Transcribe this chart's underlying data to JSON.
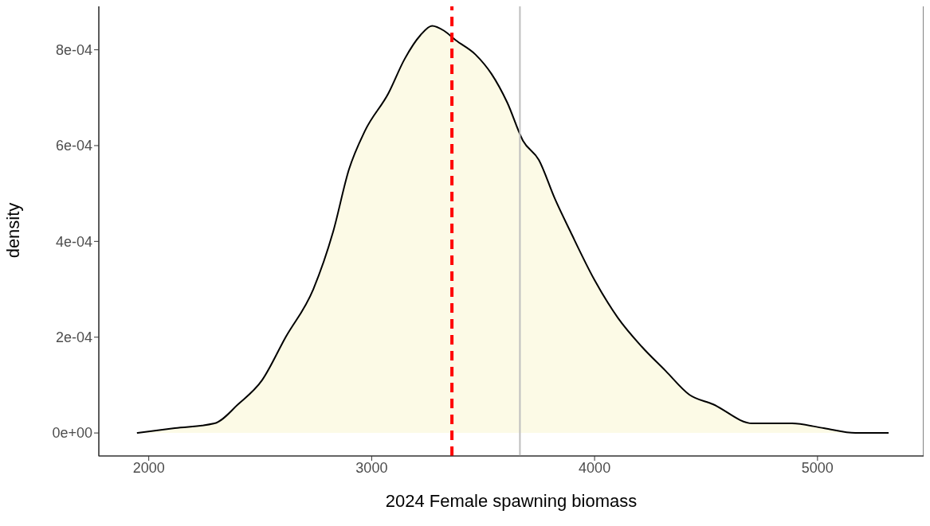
{
  "chart_data": {
    "type": "area",
    "xlabel": "2024 Female spawning biomass",
    "ylabel": "density",
    "x": [
      1947,
      2117,
      2295,
      2401,
      2508,
      2614,
      2738,
      2827,
      2898,
      2969,
      3076,
      3147,
      3218,
      3271,
      3324,
      3377,
      3466,
      3537,
      3608,
      3679,
      3750,
      3821,
      3892,
      3999,
      4105,
      4212,
      4318,
      4425,
      4531,
      4709,
      4886,
      5028,
      5170,
      5319
    ],
    "series": [
      {
        "color": "#000000",
        "values": [
          0,
          1e-05,
          2e-05,
          6e-05,
          0.00011,
          0.0002,
          0.0003,
          0.00042,
          0.00055,
          0.00063,
          0.00071,
          0.00078,
          0.00083,
          0.00085,
          0.00084,
          0.00082,
          0.00079,
          0.00075,
          0.00069,
          0.00061,
          0.00057,
          0.00049,
          0.00042,
          0.00032,
          0.00024,
          0.00018,
          0.00013,
          8e-05,
          6e-05,
          2e-05,
          2e-05,
          1e-05,
          0,
          0
        ]
      }
    ],
    "xlim": [
      1776,
      5476
    ],
    "xticks": [
      2000,
      3000,
      4000,
      5000
    ],
    "ylim": [
      -4.8e-05,
      0.000894
    ],
    "yticks": [
      {
        "value": 0,
        "label": "0e+00"
      },
      {
        "value": 0.0002,
        "label": "2e-04"
      },
      {
        "value": 0.0004,
        "label": "4e-04"
      },
      {
        "value": 0.0006,
        "label": "6e-04"
      },
      {
        "value": 0.0008,
        "label": "8e-04"
      }
    ],
    "ref_lines": [
      {
        "axis": "x",
        "value": 3360,
        "color": "#ff0000",
        "line_style": "dashed"
      },
      {
        "axis": "x",
        "value": 3665,
        "color": "#bebebe",
        "line_style": "solid"
      }
    ],
    "grid": false,
    "legend": false
  }
}
